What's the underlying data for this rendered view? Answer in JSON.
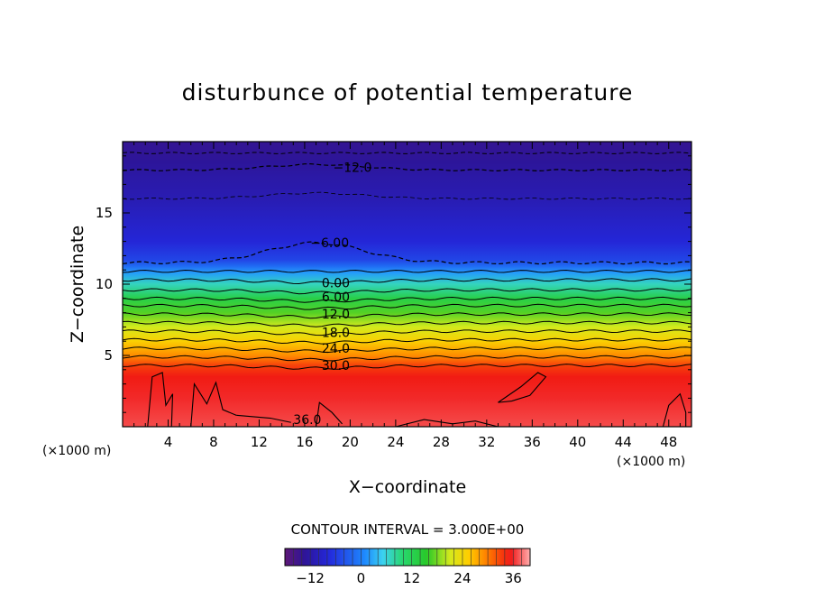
{
  "chart_data": {
    "type": "heatmap",
    "title": "disturbunce of potential temperature",
    "xlabel": "X−coordinate",
    "ylabel": "Z−coordinate",
    "x_unit": "(×1000 m)",
    "y_unit": "(×1000 m)",
    "xlim": [
      0,
      50
    ],
    "ylim": [
      0,
      20
    ],
    "x_ticks": [
      4,
      8,
      12,
      16,
      20,
      24,
      28,
      32,
      36,
      40,
      44,
      48
    ],
    "y_ticks": [
      5,
      10,
      15
    ],
    "contour_interval_text": "CONTOUR INTERVAL = 3.000E+00",
    "colorbar": {
      "min": -18,
      "max": 40,
      "ticks": [
        -12,
        0,
        12,
        24,
        36
      ],
      "tick_labels": [
        "−12",
        "0",
        "12",
        "24",
        "36"
      ]
    },
    "field_profile": {
      "z": [
        0,
        2,
        3.5,
        4.3,
        5.0,
        6.0,
        7.0,
        8.0,
        9.0,
        10.0,
        10.8,
        11.3,
        11.7,
        13.0,
        15.0,
        16.0,
        17.5,
        18.5,
        20.0
      ],
      "value": [
        37,
        36,
        35,
        33,
        29,
        25,
        21,
        17,
        13,
        7,
        2,
        -2,
        -5,
        -8,
        -10,
        -11,
        -12,
        -13,
        -14
      ]
    },
    "contour_labels": [
      {
        "text": "−12.0",
        "x": 18.5,
        "z": 18.2
      },
      {
        "text": "−6.00",
        "x": 16.5,
        "z": 12.9
      },
      {
        "text": "0.00",
        "x": 17.5,
        "z": 10.1
      },
      {
        "text": "6.00",
        "x": 17.5,
        "z": 9.1
      },
      {
        "text": "12.0",
        "x": 17.5,
        "z": 7.9
      },
      {
        "text": "18.0",
        "x": 17.5,
        "z": 6.6
      },
      {
        "text": "24.0",
        "x": 17.5,
        "z": 5.5
      },
      {
        "text": "30.0",
        "x": 17.5,
        "z": 4.3
      },
      {
        "text": "36.0",
        "x": 15.0,
        "z": 0.5
      }
    ]
  }
}
